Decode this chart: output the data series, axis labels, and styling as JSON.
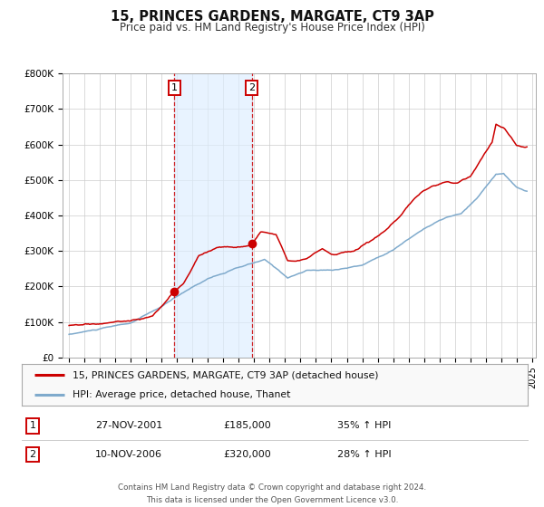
{
  "title": "15, PRINCES GARDENS, MARGATE, CT9 3AP",
  "subtitle": "Price paid vs. HM Land Registry's House Price Index (HPI)",
  "background_color": "#ffffff",
  "plot_bg_color": "#ffffff",
  "grid_color": "#cccccc",
  "red_line_color": "#cc0000",
  "blue_line_color": "#7faacc",
  "shade_color": "#ddeeff",
  "vline_color": "#cc0000",
  "marker1_value": 185000,
  "marker2_value": 320000,
  "legend_items": [
    "15, PRINCES GARDENS, MARGATE, CT9 3AP (detached house)",
    "HPI: Average price, detached house, Thanet"
  ],
  "table_rows": [
    [
      "1",
      "27-NOV-2001",
      "£185,000",
      "35% ↑ HPI"
    ],
    [
      "2",
      "10-NOV-2006",
      "£320,000",
      "28% ↑ HPI"
    ]
  ],
  "footer_lines": [
    "Contains HM Land Registry data © Crown copyright and database right 2024.",
    "This data is licensed under the Open Government Licence v3.0."
  ],
  "ylim": [
    0,
    800000
  ],
  "yticks": [
    0,
    100000,
    200000,
    300000,
    400000,
    500000,
    600000,
    700000,
    800000
  ],
  "ytick_labels": [
    "£0",
    "£100K",
    "£200K",
    "£300K",
    "£400K",
    "£500K",
    "£600K",
    "£700K",
    "£800K"
  ]
}
